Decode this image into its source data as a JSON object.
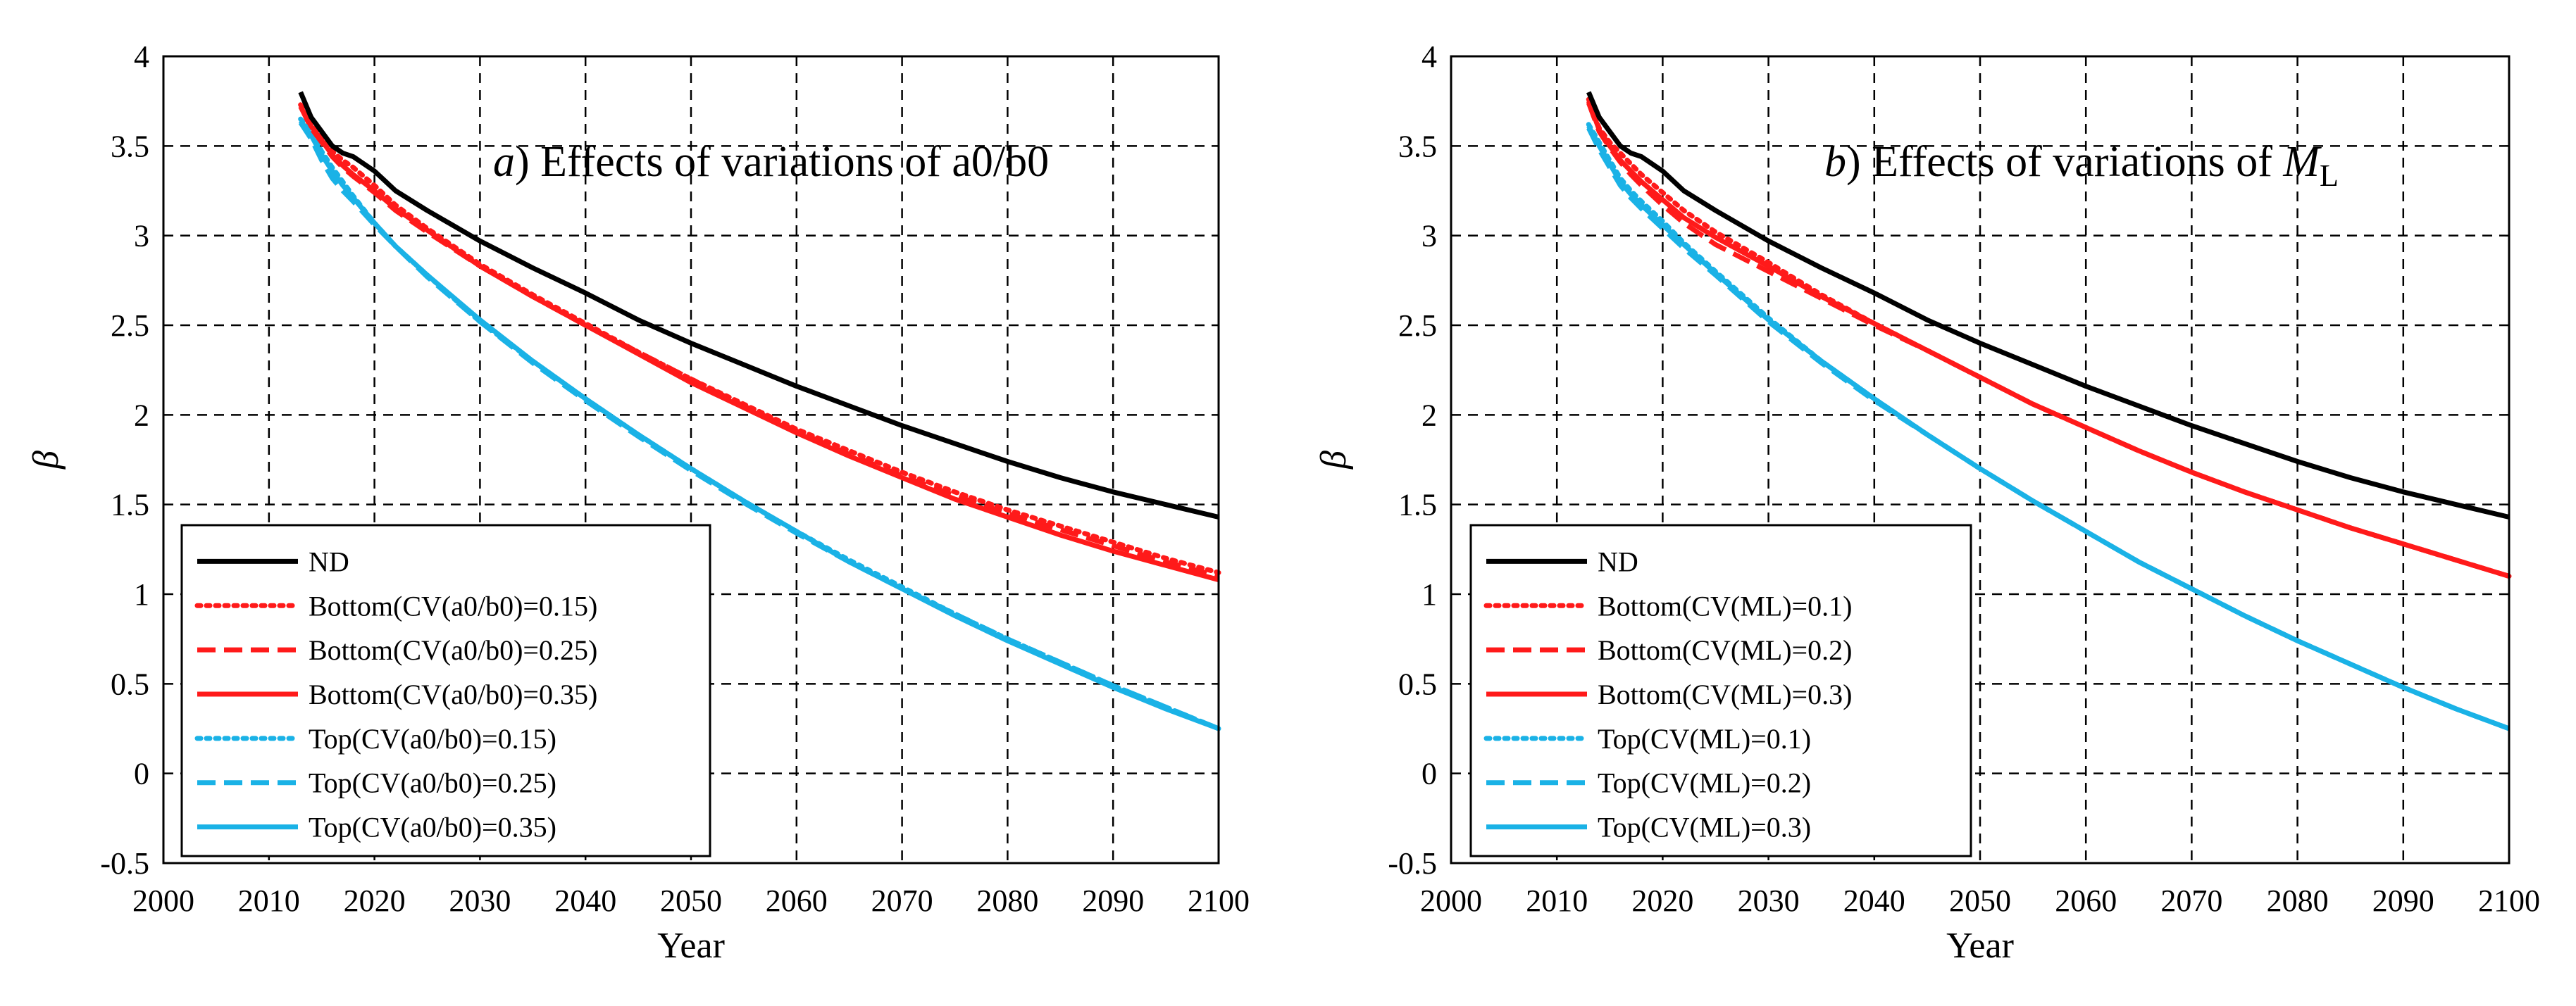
{
  "figure": {
    "background": "#ffffff"
  },
  "chart_data": [
    {
      "id": "a",
      "type": "line",
      "title_prefix": "a",
      "title_text": ") Effects of variations of a0/b0",
      "title_sub": "",
      "xlabel": "Year",
      "ylabel": "β",
      "xlim": [
        2000,
        2100
      ],
      "ylim": [
        -0.5,
        4
      ],
      "xticks": [
        2000,
        2010,
        2020,
        2030,
        2040,
        2050,
        2060,
        2070,
        2080,
        2090,
        2100
      ],
      "yticks": [
        -0.5,
        0,
        0.5,
        1,
        1.5,
        2,
        2.5,
        3,
        3.5,
        4
      ],
      "grid": true,
      "legend_position": "bottom-left",
      "series": [
        {
          "name": "ND",
          "color": "#000000",
          "dash": "solid",
          "x": [
            2013,
            2014,
            2015,
            2016,
            2017,
            2018,
            2020,
            2022,
            2025,
            2030,
            2035,
            2040,
            2045,
            2050,
            2055,
            2060,
            2065,
            2070,
            2075,
            2080,
            2085,
            2090,
            2095,
            2100
          ],
          "y": [
            3.8,
            3.66,
            3.58,
            3.5,
            3.46,
            3.44,
            3.36,
            3.25,
            3.14,
            2.97,
            2.82,
            2.68,
            2.53,
            2.4,
            2.28,
            2.16,
            2.05,
            1.94,
            1.84,
            1.74,
            1.65,
            1.57,
            1.5,
            1.43
          ]
        },
        {
          "name": "Bottom(CV(a0/b0)=0.15)",
          "color": "#ff1a1a",
          "dash": "dot",
          "x": [
            2013,
            2014,
            2015,
            2016,
            2017,
            2018,
            2020,
            2022,
            2025,
            2030,
            2035,
            2040,
            2045,
            2050,
            2055,
            2060,
            2065,
            2070,
            2075,
            2080,
            2085,
            2090,
            2095,
            2100
          ],
          "y": [
            3.73,
            3.62,
            3.55,
            3.47,
            3.42,
            3.38,
            3.28,
            3.17,
            3.04,
            2.84,
            2.67,
            2.51,
            2.35,
            2.2,
            2.06,
            1.92,
            1.8,
            1.68,
            1.57,
            1.47,
            1.38,
            1.29,
            1.2,
            1.12
          ]
        },
        {
          "name": "Bottom(CV(a0/b0)=0.25)",
          "color": "#ff1a1a",
          "dash": "dash",
          "x": [
            2013,
            2014,
            2015,
            2016,
            2017,
            2018,
            2020,
            2022,
            2025,
            2030,
            2035,
            2040,
            2045,
            2050,
            2055,
            2060,
            2065,
            2070,
            2075,
            2080,
            2085,
            2090,
            2095,
            2100
          ],
          "y": [
            3.72,
            3.6,
            3.52,
            3.44,
            3.38,
            3.33,
            3.24,
            3.14,
            3.02,
            2.83,
            2.66,
            2.5,
            2.35,
            2.2,
            2.05,
            1.91,
            1.78,
            1.66,
            1.55,
            1.45,
            1.36,
            1.27,
            1.18,
            1.1
          ]
        },
        {
          "name": "Bottom(CV(a0/b0)=0.35)",
          "color": "#ff1a1a",
          "dash": "solid",
          "x": [
            2013,
            2014,
            2015,
            2016,
            2017,
            2018,
            2020,
            2022,
            2025,
            2030,
            2035,
            2040,
            2045,
            2050,
            2055,
            2060,
            2065,
            2070,
            2075,
            2080,
            2085,
            2090,
            2095,
            2100
          ],
          "y": [
            3.72,
            3.61,
            3.53,
            3.45,
            3.39,
            3.34,
            3.25,
            3.15,
            3.03,
            2.83,
            2.66,
            2.5,
            2.34,
            2.18,
            2.04,
            1.9,
            1.77,
            1.65,
            1.53,
            1.43,
            1.33,
            1.24,
            1.16,
            1.08
          ]
        },
        {
          "name": "Top(CV(a0/b0)=0.15)",
          "color": "#1ab2e6",
          "dash": "dot",
          "x": [
            2013,
            2014,
            2015,
            2016,
            2017,
            2018,
            2020,
            2022,
            2025,
            2030,
            2035,
            2040,
            2045,
            2050,
            2055,
            2060,
            2065,
            2070,
            2075,
            2080,
            2085,
            2090,
            2095,
            2100
          ],
          "y": [
            3.65,
            3.58,
            3.47,
            3.38,
            3.3,
            3.22,
            3.07,
            2.94,
            2.78,
            2.52,
            2.3,
            2.09,
            1.89,
            1.7,
            1.52,
            1.35,
            1.19,
            1.04,
            0.89,
            0.75,
            0.62,
            0.49,
            0.37,
            0.25
          ]
        },
        {
          "name": "Top(CV(a0/b0)=0.25)",
          "color": "#1ab2e6",
          "dash": "dash",
          "x": [
            2013,
            2014,
            2015,
            2016,
            2017,
            2018,
            2020,
            2022,
            2025,
            2030,
            2035,
            2040,
            2045,
            2050,
            2055,
            2060,
            2065,
            2070,
            2075,
            2080,
            2085,
            2090,
            2095,
            2100
          ],
          "y": [
            3.63,
            3.54,
            3.42,
            3.32,
            3.25,
            3.19,
            3.06,
            2.94,
            2.77,
            2.52,
            2.29,
            2.08,
            1.88,
            1.69,
            1.51,
            1.34,
            1.18,
            1.03,
            0.89,
            0.75,
            0.62,
            0.49,
            0.37,
            0.25
          ]
        },
        {
          "name": "Top(CV(a0/b0)=0.35)",
          "color": "#1ab2e6",
          "dash": "solid",
          "x": [
            2013,
            2014,
            2015,
            2016,
            2017,
            2018,
            2020,
            2022,
            2025,
            2030,
            2035,
            2040,
            2045,
            2050,
            2055,
            2060,
            2065,
            2070,
            2075,
            2080,
            2085,
            2090,
            2095,
            2100
          ],
          "y": [
            3.64,
            3.56,
            3.45,
            3.36,
            3.28,
            3.21,
            3.07,
            2.94,
            2.78,
            2.53,
            2.3,
            2.09,
            1.89,
            1.7,
            1.52,
            1.35,
            1.18,
            1.03,
            0.88,
            0.74,
            0.61,
            0.48,
            0.36,
            0.25
          ]
        }
      ]
    },
    {
      "id": "b",
      "type": "line",
      "title_prefix": "b",
      "title_text": ") Effects of variations of ",
      "title_italic": "M",
      "title_sub": "L",
      "xlabel": "Year",
      "ylabel": "β",
      "xlim": [
        2000,
        2100
      ],
      "ylim": [
        -0.5,
        4
      ],
      "xticks": [
        2000,
        2010,
        2020,
        2030,
        2040,
        2050,
        2060,
        2070,
        2080,
        2090,
        2100
      ],
      "yticks": [
        -0.5,
        0,
        0.5,
        1,
        1.5,
        2,
        2.5,
        3,
        3.5,
        4
      ],
      "grid": true,
      "legend_position": "bottom-left",
      "series": [
        {
          "name": "ND",
          "color": "#000000",
          "dash": "solid",
          "x": [
            2013,
            2014,
            2015,
            2016,
            2017,
            2018,
            2020,
            2022,
            2025,
            2030,
            2035,
            2040,
            2045,
            2050,
            2055,
            2060,
            2065,
            2070,
            2075,
            2080,
            2085,
            2090,
            2095,
            2100
          ],
          "y": [
            3.8,
            3.66,
            3.58,
            3.5,
            3.46,
            3.44,
            3.36,
            3.25,
            3.14,
            2.97,
            2.82,
            2.68,
            2.53,
            2.4,
            2.28,
            2.16,
            2.05,
            1.94,
            1.84,
            1.74,
            1.65,
            1.57,
            1.5,
            1.43
          ]
        },
        {
          "name": "Bottom(CV(ML)=0.1)",
          "color": "#ff1a1a",
          "dash": "dot",
          "x": [
            2013,
            2014,
            2015,
            2016,
            2017,
            2018,
            2020,
            2022,
            2025,
            2030,
            2035,
            2040,
            2045,
            2050,
            2055,
            2060,
            2065,
            2070,
            2075,
            2080,
            2085,
            2090,
            2095,
            2100
          ],
          "y": [
            3.76,
            3.6,
            3.52,
            3.46,
            3.4,
            3.34,
            3.24,
            3.14,
            3.02,
            2.85,
            2.67,
            2.51,
            2.36,
            2.21,
            2.06,
            1.93,
            1.8,
            1.68,
            1.57,
            1.47,
            1.37,
            1.28,
            1.19,
            1.1
          ]
        },
        {
          "name": "Bottom(CV(ML)=0.2)",
          "color": "#ff1a1a",
          "dash": "dash",
          "x": [
            2013,
            2014,
            2015,
            2016,
            2017,
            2018,
            2020,
            2022,
            2025,
            2030,
            2035,
            2040,
            2045,
            2050,
            2055,
            2060,
            2065,
            2070,
            2075,
            2080,
            2085,
            2090,
            2095,
            2100
          ],
          "y": [
            3.74,
            3.58,
            3.49,
            3.41,
            3.34,
            3.28,
            3.17,
            3.07,
            2.95,
            2.8,
            2.65,
            2.5,
            2.36,
            2.21,
            2.06,
            1.93,
            1.8,
            1.68,
            1.57,
            1.47,
            1.37,
            1.28,
            1.19,
            1.1
          ]
        },
        {
          "name": "Bottom(CV(ML)=0.3)",
          "color": "#ff1a1a",
          "dash": "solid",
          "x": [
            2013,
            2014,
            2015,
            2016,
            2017,
            2018,
            2020,
            2022,
            2025,
            2030,
            2035,
            2040,
            2045,
            2050,
            2055,
            2060,
            2065,
            2070,
            2075,
            2080,
            2085,
            2090,
            2095,
            2100
          ],
          "y": [
            3.75,
            3.59,
            3.5,
            3.42,
            3.36,
            3.3,
            3.2,
            3.1,
            2.99,
            2.83,
            2.66,
            2.51,
            2.36,
            2.21,
            2.06,
            1.93,
            1.8,
            1.68,
            1.57,
            1.47,
            1.37,
            1.28,
            1.19,
            1.1
          ]
        },
        {
          "name": "Top(CV(ML)=0.1)",
          "color": "#1ab2e6",
          "dash": "dot",
          "x": [
            2013,
            2014,
            2015,
            2016,
            2017,
            2018,
            2020,
            2022,
            2025,
            2030,
            2035,
            2040,
            2045,
            2050,
            2055,
            2060,
            2065,
            2070,
            2075,
            2080,
            2085,
            2090,
            2095,
            2100
          ],
          "y": [
            3.62,
            3.52,
            3.42,
            3.32,
            3.25,
            3.19,
            3.08,
            2.96,
            2.8,
            2.54,
            2.3,
            2.09,
            1.89,
            1.7,
            1.52,
            1.35,
            1.18,
            1.03,
            0.88,
            0.74,
            0.61,
            0.48,
            0.36,
            0.25
          ]
        },
        {
          "name": "Top(CV(ML)=0.2)",
          "color": "#1ab2e6",
          "dash": "dash",
          "x": [
            2013,
            2014,
            2015,
            2016,
            2017,
            2018,
            2020,
            2022,
            2025,
            2030,
            2035,
            2040,
            2045,
            2050,
            2055,
            2060,
            2065,
            2070,
            2075,
            2080,
            2085,
            2090,
            2095,
            2100
          ],
          "y": [
            3.6,
            3.48,
            3.38,
            3.28,
            3.21,
            3.15,
            3.04,
            2.93,
            2.78,
            2.52,
            2.29,
            2.08,
            1.89,
            1.7,
            1.52,
            1.35,
            1.18,
            1.03,
            0.88,
            0.74,
            0.61,
            0.48,
            0.36,
            0.25
          ]
        },
        {
          "name": "Top(CV(ML)=0.3)",
          "color": "#1ab2e6",
          "dash": "solid",
          "x": [
            2013,
            2014,
            2015,
            2016,
            2017,
            2018,
            2020,
            2022,
            2025,
            2030,
            2035,
            2040,
            2045,
            2050,
            2055,
            2060,
            2065,
            2070,
            2075,
            2080,
            2085,
            2090,
            2095,
            2100
          ],
          "y": [
            3.61,
            3.5,
            3.4,
            3.3,
            3.23,
            3.17,
            3.06,
            2.95,
            2.79,
            2.53,
            2.3,
            2.09,
            1.89,
            1.7,
            1.52,
            1.35,
            1.18,
            1.03,
            0.88,
            0.74,
            0.61,
            0.48,
            0.36,
            0.25
          ]
        }
      ]
    }
  ]
}
